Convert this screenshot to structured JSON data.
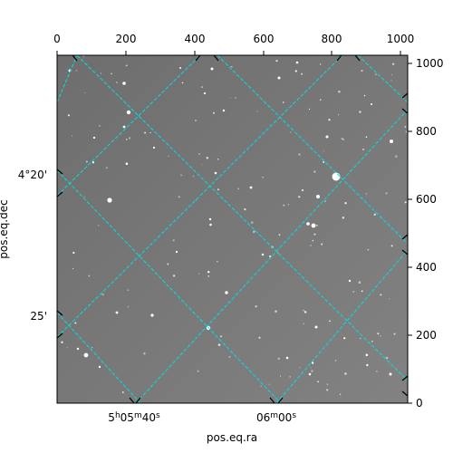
{
  "axes": {
    "xlabel": "pos.eq.ra",
    "ylabel": "pos.eq.dec",
    "top_ticks": [
      "0",
      "200",
      "400",
      "600",
      "800",
      "1000"
    ],
    "right_ticks": [
      "0",
      "200",
      "400",
      "600",
      "800",
      "1000"
    ],
    "ra_ticks": [
      {
        "main": "5",
        "s1": "h",
        "mid": "05",
        "s2": "m",
        "tail": "40",
        "s3": "s"
      },
      {
        "main": "06",
        "s1": "m",
        "mid": "00",
        "s2": "s",
        "tail": "",
        "s3": ""
      }
    ],
    "dec_ticks": [
      "4°20'",
      "25'"
    ]
  },
  "colors": {
    "grid": "#00e0e0",
    "background": "#7b7b7b"
  }
}
